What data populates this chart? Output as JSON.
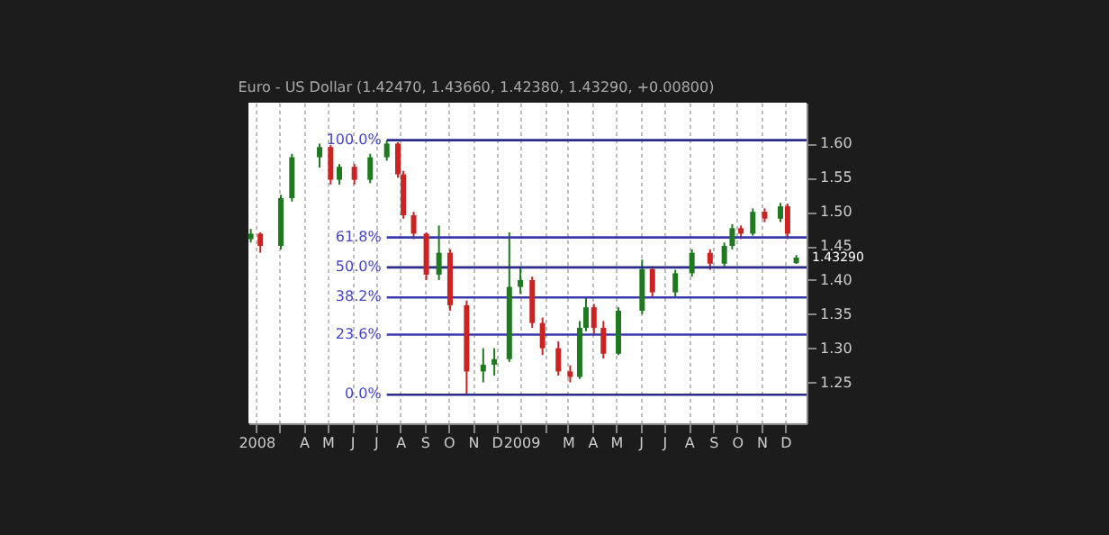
{
  "chart_data": {
    "type": "candlestick",
    "title": "Euro - US Dollar (1.42470, 1.43660, 1.42380, 1.43290, +0.00800)",
    "x": [
      "2008-01-25",
      "2008-02-06",
      "2008-03-03",
      "2008-03-17",
      "2008-04-21",
      "2008-05-05",
      "2008-05-16",
      "2008-06-04",
      "2008-06-24",
      "2008-07-15",
      "2008-07-29",
      "2008-08-05",
      "2008-08-18",
      "2008-09-03",
      "2008-09-19",
      "2008-10-03",
      "2008-10-24",
      "2008-11-14",
      "2008-11-28",
      "2008-12-17",
      "2008-12-31",
      "2009-01-15",
      "2009-01-28",
      "2009-02-17",
      "2009-03-04",
      "2009-03-16",
      "2009-03-24",
      "2009-04-03",
      "2009-04-15",
      "2009-05-04",
      "2009-06-03",
      "2009-06-16",
      "2009-07-15",
      "2009-08-05",
      "2009-08-28",
      "2009-09-15",
      "2009-09-25",
      "2009-10-06",
      "2009-10-21",
      "2009-11-05",
      "2009-11-25",
      "2009-12-04",
      "2009-12-15"
    ],
    "ohlc": [
      [
        1.46,
        1.475,
        1.455,
        1.468
      ],
      [
        1.468,
        1.47,
        1.44,
        1.45
      ],
      [
        1.45,
        1.525,
        1.445,
        1.52
      ],
      [
        1.52,
        1.585,
        1.515,
        1.58
      ],
      [
        1.58,
        1.6,
        1.565,
        1.595
      ],
      [
        1.595,
        1.598,
        1.54,
        1.547
      ],
      [
        1.547,
        1.57,
        1.54,
        1.566
      ],
      [
        1.566,
        1.57,
        1.54,
        1.547
      ],
      [
        1.547,
        1.585,
        1.542,
        1.58
      ],
      [
        1.58,
        1.605,
        1.575,
        1.6
      ],
      [
        1.6,
        1.602,
        1.55,
        1.555
      ],
      [
        1.555,
        1.56,
        1.49,
        1.495
      ],
      [
        1.495,
        1.5,
        1.46,
        1.468
      ],
      [
        1.468,
        1.47,
        1.4,
        1.408
      ],
      [
        1.408,
        1.48,
        1.4,
        1.44
      ],
      [
        1.44,
        1.445,
        1.355,
        1.363
      ],
      [
        1.363,
        1.37,
        1.232,
        1.266
      ],
      [
        1.266,
        1.3,
        1.25,
        1.276
      ],
      [
        1.276,
        1.3,
        1.26,
        1.284
      ],
      [
        1.284,
        1.47,
        1.28,
        1.39
      ],
      [
        1.39,
        1.42,
        1.38,
        1.4
      ],
      [
        1.4,
        1.405,
        1.33,
        1.337
      ],
      [
        1.337,
        1.345,
        1.29,
        1.3
      ],
      [
        1.3,
        1.31,
        1.26,
        1.266
      ],
      [
        1.266,
        1.275,
        1.25,
        1.258
      ],
      [
        1.258,
        1.34,
        1.255,
        1.33
      ],
      [
        1.33,
        1.375,
        1.325,
        1.36
      ],
      [
        1.36,
        1.365,
        1.32,
        1.33
      ],
      [
        1.33,
        1.34,
        1.285,
        1.292
      ],
      [
        1.292,
        1.36,
        1.29,
        1.355
      ],
      [
        1.355,
        1.43,
        1.35,
        1.416
      ],
      [
        1.416,
        1.42,
        1.375,
        1.382
      ],
      [
        1.382,
        1.415,
        1.375,
        1.41
      ],
      [
        1.41,
        1.445,
        1.405,
        1.44
      ],
      [
        1.44,
        1.445,
        1.415,
        1.424
      ],
      [
        1.424,
        1.455,
        1.42,
        1.45
      ],
      [
        1.45,
        1.482,
        1.445,
        1.476
      ],
      [
        1.476,
        1.48,
        1.46,
        1.468
      ],
      [
        1.468,
        1.505,
        1.465,
        1.5
      ],
      [
        1.5,
        1.505,
        1.485,
        1.49
      ],
      [
        1.49,
        1.513,
        1.485,
        1.508
      ],
      [
        1.508,
        1.512,
        1.46,
        1.468
      ],
      [
        1.4247,
        1.4366,
        1.4238,
        1.4329
      ]
    ],
    "colors": [
      "#1f7a1f",
      "#cc2222",
      "#1f7a1f",
      "#1f7a1f",
      "#1f7a1f",
      "#cc2222",
      "#1f7a1f",
      "#cc2222",
      "#1f7a1f",
      "#1f7a1f",
      "#cc2222",
      "#cc2222",
      "#cc2222",
      "#cc2222",
      "#1f7a1f",
      "#cc2222",
      "#cc2222",
      "#1f7a1f",
      "#1f7a1f",
      "#1f7a1f",
      "#1f7a1f",
      "#cc2222",
      "#cc2222",
      "#cc2222",
      "#cc2222",
      "#1f7a1f",
      "#1f7a1f",
      "#cc2222",
      "#cc2222",
      "#1f7a1f",
      "#1f7a1f",
      "#cc2222",
      "#1f7a1f",
      "#1f7a1f",
      "#cc2222",
      "#1f7a1f",
      "#1f7a1f",
      "#cc2222",
      "#1f7a1f",
      "#cc2222",
      "#1f7a1f",
      "#cc2222",
      "#1f7a1f"
    ],
    "xlim": [
      "2008-01-22",
      "2009-12-28"
    ],
    "xticks": [
      {
        "value": "2008-02-01",
        "label": "2008"
      },
      {
        "value": "2008-03-01",
        "label": null
      },
      {
        "value": "2008-04-01",
        "label": "A"
      },
      {
        "value": "2008-05-01",
        "label": "M"
      },
      {
        "value": "2008-06-01",
        "label": "J"
      },
      {
        "value": "2008-07-01",
        "label": "J"
      },
      {
        "value": "2008-08-01",
        "label": "A"
      },
      {
        "value": "2008-09-01",
        "label": "S"
      },
      {
        "value": "2008-10-01",
        "label": "O"
      },
      {
        "value": "2008-11-01",
        "label": "N"
      },
      {
        "value": "2008-12-01",
        "label": "D"
      },
      {
        "value": "2009-01-01",
        "label": "2009"
      },
      {
        "value": "2009-02-01",
        "label": null
      },
      {
        "value": "2009-03-01",
        "label": "M"
      },
      {
        "value": "2009-04-01",
        "label": "A"
      },
      {
        "value": "2009-05-01",
        "label": "M"
      },
      {
        "value": "2009-06-01",
        "label": "J"
      },
      {
        "value": "2009-07-01",
        "label": "J"
      },
      {
        "value": "2009-08-01",
        "label": "A"
      },
      {
        "value": "2009-09-01",
        "label": "S"
      },
      {
        "value": "2009-10-01",
        "label": "O"
      },
      {
        "value": "2009-11-01",
        "label": "N"
      },
      {
        "value": "2009-12-01",
        "label": "D"
      }
    ],
    "ylim": [
      1.19,
      1.66
    ],
    "yticks": [
      1.25,
      {
        "value": 1.3,
        "label": "1.30"
      },
      1.35,
      {
        "value": 1.4,
        "label": "1.40"
      },
      1.45,
      {
        "value": 1.5,
        "label": "1.50"
      },
      1.55,
      {
        "value": 1.6,
        "label": "1.60"
      }
    ],
    "grid": "x",
    "ref_lines": [
      {
        "axis": "y",
        "value": 1.605,
        "color": "#2a2a8a"
      },
      {
        "axis": "y",
        "value": 1.4625,
        "color": "#3a3aaa"
      },
      {
        "axis": "y",
        "value": 1.4185,
        "color": "#2a2a8a"
      },
      {
        "axis": "y",
        "value": 1.3745,
        "color": "#3a3aaa"
      },
      {
        "axis": "y",
        "value": 1.32,
        "color": "#3a3aaa"
      },
      {
        "axis": "y",
        "value": 1.232,
        "color": "#2a2a8a"
      }
    ],
    "annotations": [
      "100.0%",
      "61.8%",
      "50.0%",
      "38.2%",
      "23.6%",
      "0.0%",
      "1.43290"
    ]
  }
}
